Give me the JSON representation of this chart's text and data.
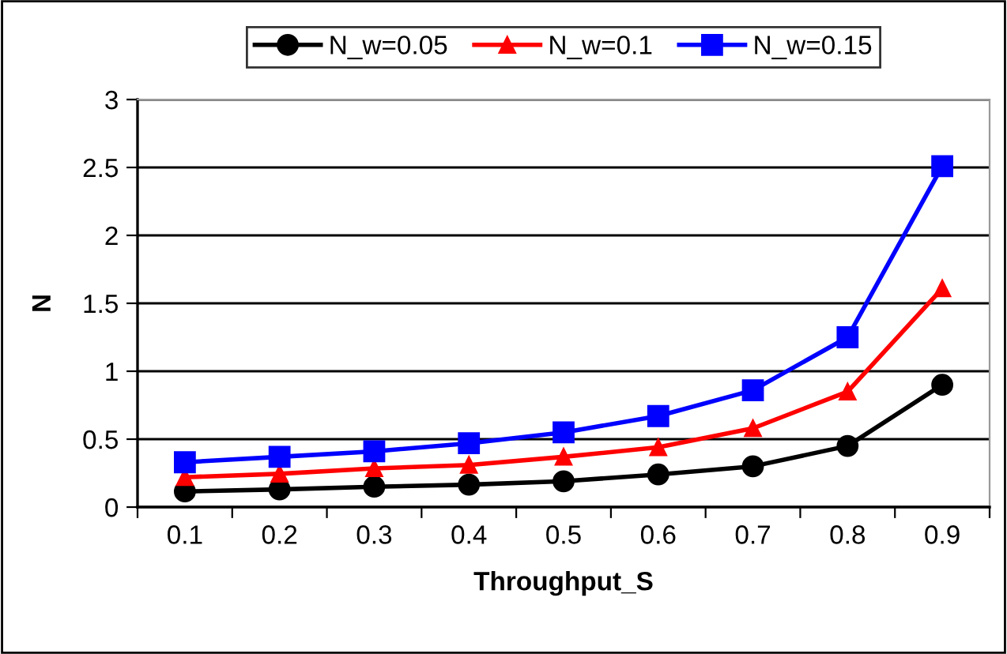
{
  "chart_data": {
    "type": "line",
    "xlabel": "Throughput_S",
    "ylabel": "N",
    "categories": [
      "0.1",
      "0.2",
      "0.3",
      "0.4",
      "0.5",
      "0.6",
      "0.7",
      "0.8",
      "0.9"
    ],
    "series": [
      {
        "name": "N_w=0.05",
        "color": "#000000",
        "marker": "circle",
        "values": [
          0.115,
          0.13,
          0.15,
          0.165,
          0.19,
          0.24,
          0.3,
          0.45,
          0.9
        ]
      },
      {
        "name": "N_w=0.1",
        "color": "#ff0000",
        "marker": "triangle",
        "values": [
          0.22,
          0.245,
          0.285,
          0.31,
          0.37,
          0.44,
          0.58,
          0.85,
          1.61
        ]
      },
      {
        "name": "N_w=0.15",
        "color": "#0000ff",
        "marker": "square",
        "values": [
          0.33,
          0.37,
          0.41,
          0.47,
          0.55,
          0.67,
          0.86,
          1.25,
          2.51
        ]
      }
    ],
    "ylim": [
      0,
      3
    ],
    "yticks": [
      0,
      0.5,
      1,
      1.5,
      2,
      2.5,
      3
    ],
    "grid": "y",
    "legend": "top",
    "line_style": "solid"
  }
}
